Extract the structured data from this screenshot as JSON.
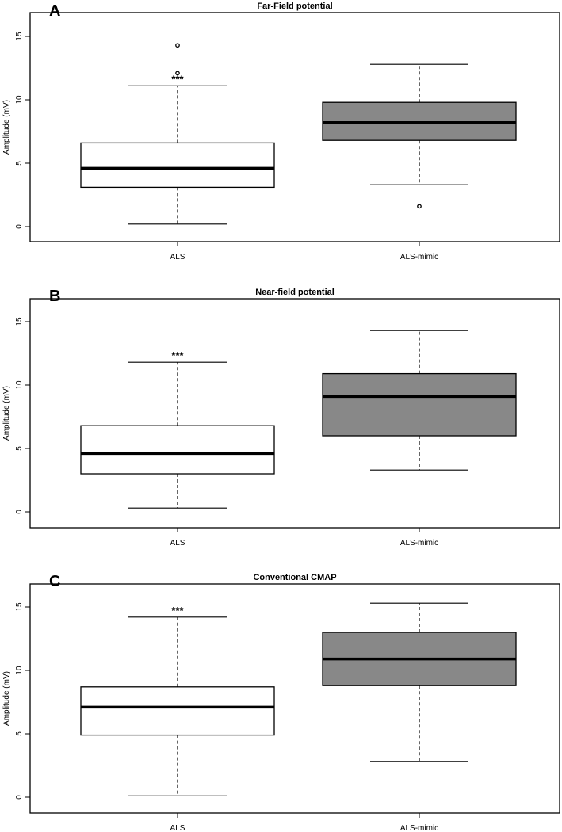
{
  "chart_data": [
    {
      "type": "box",
      "panel": "A",
      "title": "Far-Field potential",
      "ylabel": "Amplitude (mV)",
      "ylim": [
        -1.5,
        16.8
      ],
      "yticks": [
        0,
        5,
        10,
        15
      ],
      "categories": [
        "ALS",
        "ALS-mimic"
      ],
      "colors": [
        "#ffffff",
        "#888888"
      ],
      "boxes": [
        {
          "category": "ALS",
          "min": 0.2,
          "q1": 3.1,
          "median": 4.6,
          "q3": 6.6,
          "max": 11.1,
          "outliers": [
            12.1,
            14.3
          ],
          "significance": "***"
        },
        {
          "category": "ALS-mimic",
          "min": 3.3,
          "q1": 6.8,
          "median": 8.2,
          "q3": 9.8,
          "max": 12.8,
          "outliers": [
            1.6
          ],
          "significance": ""
        }
      ]
    },
    {
      "type": "box",
      "panel": "B",
      "title": "Near-field potential",
      "ylabel": "Amplitude (mV)",
      "ylim": [
        -1.5,
        16.8
      ],
      "yticks": [
        0,
        5,
        10,
        15
      ],
      "categories": [
        "ALS",
        "ALS-mimic"
      ],
      "colors": [
        "#ffffff",
        "#888888"
      ],
      "boxes": [
        {
          "category": "ALS",
          "min": 0.3,
          "q1": 3.0,
          "median": 4.6,
          "q3": 6.8,
          "max": 11.8,
          "outliers": [],
          "significance": "***"
        },
        {
          "category": "ALS-mimic",
          "min": 3.3,
          "q1": 6.0,
          "median": 9.1,
          "q3": 10.9,
          "max": 14.3,
          "outliers": [],
          "significance": ""
        }
      ]
    },
    {
      "type": "box",
      "panel": "C",
      "title": "Conventional CMAP",
      "ylabel": "Amplitude (mV)",
      "ylim": [
        -1.2,
        16.8
      ],
      "yticks": [
        0,
        5,
        10,
        15
      ],
      "categories": [
        "ALS",
        "ALS-mimic"
      ],
      "colors": [
        "#ffffff",
        "#888888"
      ],
      "boxes": [
        {
          "category": "ALS",
          "min": 0.1,
          "q1": 4.9,
          "median": 7.1,
          "q3": 8.7,
          "max": 14.2,
          "outliers": [],
          "significance": "***"
        },
        {
          "category": "ALS-mimic",
          "min": 2.8,
          "q1": 8.8,
          "median": 10.9,
          "q3": 13.0,
          "max": 15.3,
          "outliers": [],
          "significance": ""
        }
      ]
    }
  ]
}
